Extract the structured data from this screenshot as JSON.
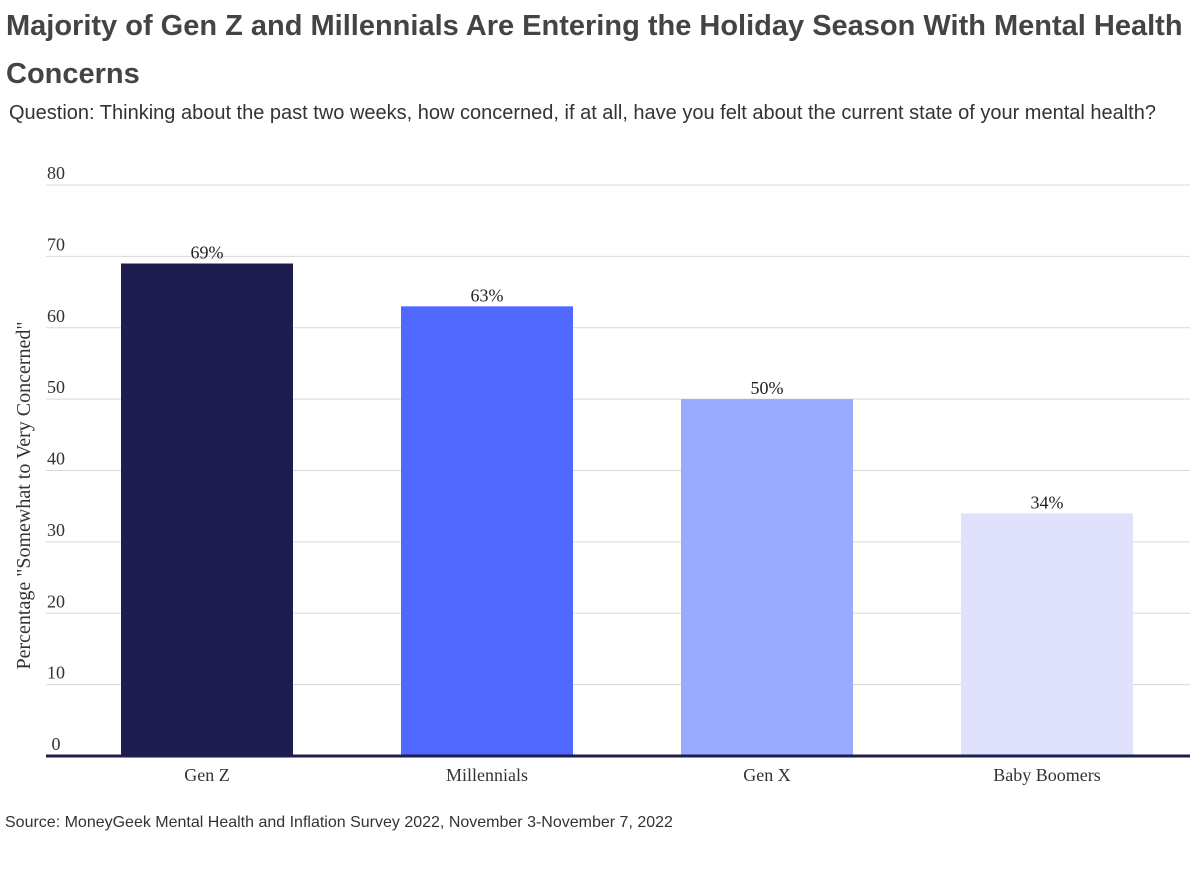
{
  "title": "Majority of Gen Z and Millennials Are Entering the Holiday Season With Mental Health Concerns",
  "subtitle": "Question: Thinking about the past two weeks, how concerned, if at all, have you felt about the current state of your mental health?",
  "source": "Source: MoneyGeek Mental Health and Inflation Survey 2022, November 3-November 7, 2022",
  "chart_data": {
    "type": "bar",
    "categories": [
      "Gen Z",
      "Millennials",
      "Gen X",
      "Baby Boomers"
    ],
    "values": [
      69,
      63,
      50,
      34
    ],
    "data_labels": [
      "69%",
      "63%",
      "50%",
      "34%"
    ],
    "colors": [
      "#1f1c4f",
      "#5068ff",
      "#9aaaff",
      "#e0e2fb"
    ],
    "ylabel": "Percentage \"Somewhat to Very Concerned\"",
    "xlabel": "",
    "ylim": [
      0,
      80
    ],
    "yticks": [
      0,
      10,
      20,
      30,
      40,
      50,
      60,
      70,
      80
    ],
    "grid": true,
    "legend": "none"
  }
}
